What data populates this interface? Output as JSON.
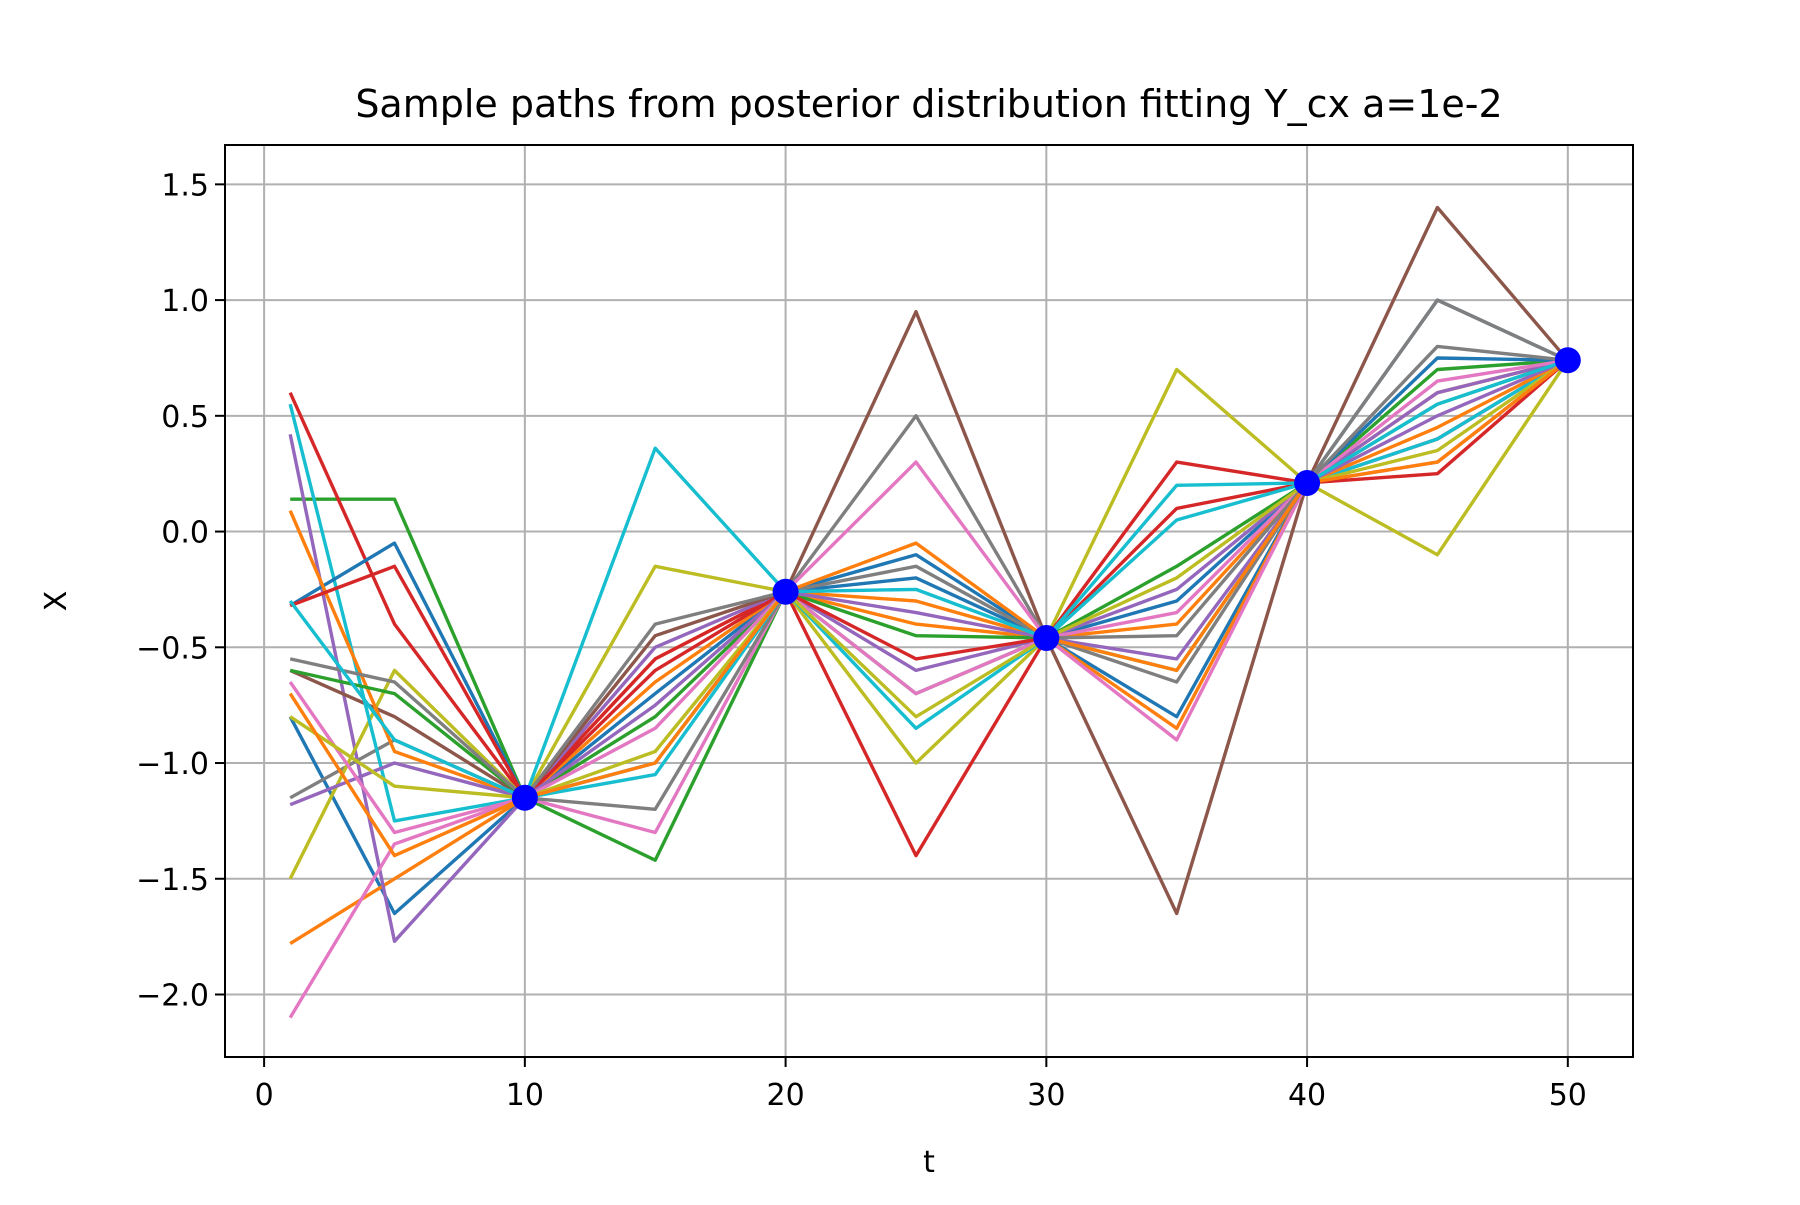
{
  "chart_data": {
    "type": "line",
    "title": "Sample paths from posterior distribution fitting Y_cx a=1e-2",
    "xlabel": "t",
    "ylabel": "X",
    "xlim": [
      -1.5,
      52.5
    ],
    "ylim": [
      -2.27,
      1.67
    ],
    "grid": true,
    "legend": "none",
    "xticks": [
      0,
      10,
      20,
      30,
      40,
      50
    ],
    "xtick_labels": [
      "0",
      "10",
      "20",
      "30",
      "40",
      "50"
    ],
    "yticks": [
      -2.0,
      -1.5,
      -1.0,
      -0.5,
      0.0,
      0.5,
      1.0,
      1.5
    ],
    "ytick_labels": [
      "−2.0",
      "−1.5",
      "−1.0",
      "−0.5",
      "0.0",
      "0.5",
      "1.0",
      "1.5"
    ],
    "anchor_points": {
      "x": [
        10,
        20,
        30,
        40,
        50
      ],
      "y": [
        -1.15,
        -0.26,
        -0.46,
        0.21,
        0.74
      ],
      "color": "#0000ff"
    },
    "line_colors": [
      "#1f77b4",
      "#ff7f0e",
      "#2ca02c",
      "#d62728",
      "#9467bd",
      "#8c564b",
      "#e377c2",
      "#7f7f7f",
      "#bcbd22",
      "#17becf"
    ],
    "x_nodes": [
      1,
      5,
      10,
      15,
      20,
      25,
      30,
      35,
      40,
      45,
      50
    ],
    "series": [
      {
        "color": "#1f77b4",
        "values": [
          -0.8,
          -1.65,
          -1.15,
          -1.0,
          -0.26,
          -0.2,
          -0.46,
          -0.8,
          0.21,
          1.0,
          0.74
        ]
      },
      {
        "color": "#ff7f0e",
        "values": [
          -1.78,
          -1.5,
          -1.15,
          -0.55,
          -0.26,
          -0.4,
          -0.46,
          -0.85,
          0.21,
          0.6,
          0.74
        ]
      },
      {
        "color": "#2ca02c",
        "values": [
          0.14,
          0.14,
          -1.15,
          -1.42,
          -0.26,
          -0.7,
          -0.46,
          -0.6,
          0.21,
          0.7,
          0.74
        ]
      },
      {
        "color": "#d62728",
        "values": [
          0.6,
          -0.4,
          -1.15,
          -0.55,
          -0.26,
          -1.4,
          -0.46,
          0.1,
          0.21,
          0.4,
          0.74
        ]
      },
      {
        "color": "#9467bd",
        "values": [
          0.42,
          -1.77,
          -1.15,
          -0.5,
          -0.26,
          -0.6,
          -0.46,
          -0.55,
          0.21,
          0.6,
          0.74
        ]
      },
      {
        "color": "#8c564b",
        "values": [
          -0.6,
          -0.8,
          -1.15,
          -0.45,
          -0.26,
          0.95,
          -0.46,
          -1.65,
          0.21,
          1.4,
          0.74
        ]
      },
      {
        "color": "#e377c2",
        "values": [
          -2.1,
          -1.35,
          -1.15,
          -1.3,
          -0.26,
          -0.7,
          -0.46,
          -0.9,
          0.21,
          0.3,
          0.74
        ]
      },
      {
        "color": "#7f7f7f",
        "values": [
          -1.15,
          -0.9,
          -1.15,
          -1.2,
          -0.26,
          0.5,
          -0.46,
          -0.65,
          0.21,
          1.0,
          0.74
        ]
      },
      {
        "color": "#bcbd22",
        "values": [
          -1.5,
          -0.6,
          -1.15,
          -0.15,
          -0.26,
          -1.0,
          -0.46,
          0.7,
          0.21,
          -0.1,
          0.74
        ]
      },
      {
        "color": "#17becf",
        "values": [
          0.55,
          -1.25,
          -1.15,
          0.36,
          -0.26,
          -0.85,
          -0.46,
          0.05,
          0.21,
          0.4,
          0.74
        ]
      },
      {
        "color": "#1f77b4",
        "values": [
          -0.32,
          -0.05,
          -1.15,
          -0.7,
          -0.26,
          -0.1,
          -0.46,
          -0.3,
          0.21,
          0.75,
          0.74
        ]
      },
      {
        "color": "#ff7f0e",
        "values": [
          0.09,
          -0.95,
          -1.15,
          -0.65,
          -0.26,
          -0.3,
          -0.46,
          -0.4,
          0.21,
          0.45,
          0.74
        ]
      },
      {
        "color": "#2ca02c",
        "values": [
          -0.6,
          -0.7,
          -1.15,
          -0.8,
          -0.26,
          -0.45,
          -0.46,
          -0.15,
          0.21,
          0.55,
          0.74
        ]
      },
      {
        "color": "#d62728",
        "values": [
          -0.32,
          -0.15,
          -1.15,
          -0.6,
          -0.26,
          -0.55,
          -0.46,
          0.3,
          0.21,
          0.25,
          0.74
        ]
      },
      {
        "color": "#9467bd",
        "values": [
          -1.18,
          -1.0,
          -1.15,
          -0.75,
          -0.26,
          -0.35,
          -0.46,
          -0.25,
          0.21,
          0.5,
          0.74
        ]
      },
      {
        "color": "#e377c2",
        "values": [
          -0.65,
          -1.3,
          -1.15,
          -0.85,
          -0.26,
          0.3,
          -0.46,
          -0.35,
          0.21,
          0.65,
          0.74
        ]
      },
      {
        "color": "#7f7f7f",
        "values": [
          -0.55,
          -0.65,
          -1.15,
          -0.4,
          -0.26,
          -0.15,
          -0.46,
          -0.45,
          0.21,
          0.8,
          0.74
        ]
      },
      {
        "color": "#bcbd22",
        "values": [
          -0.8,
          -1.1,
          -1.15,
          -0.95,
          -0.26,
          -0.8,
          -0.46,
          -0.2,
          0.21,
          0.35,
          0.74
        ]
      },
      {
        "color": "#17becf",
        "values": [
          -0.3,
          -0.9,
          -1.15,
          -1.05,
          -0.26,
          -0.25,
          -0.46,
          0.2,
          0.21,
          0.55,
          0.74
        ]
      },
      {
        "color": "#ff7f0e",
        "values": [
          -0.7,
          -1.4,
          -1.15,
          -1.0,
          -0.26,
          -0.05,
          -0.46,
          -0.6,
          0.21,
          0.3,
          0.74
        ]
      }
    ]
  }
}
